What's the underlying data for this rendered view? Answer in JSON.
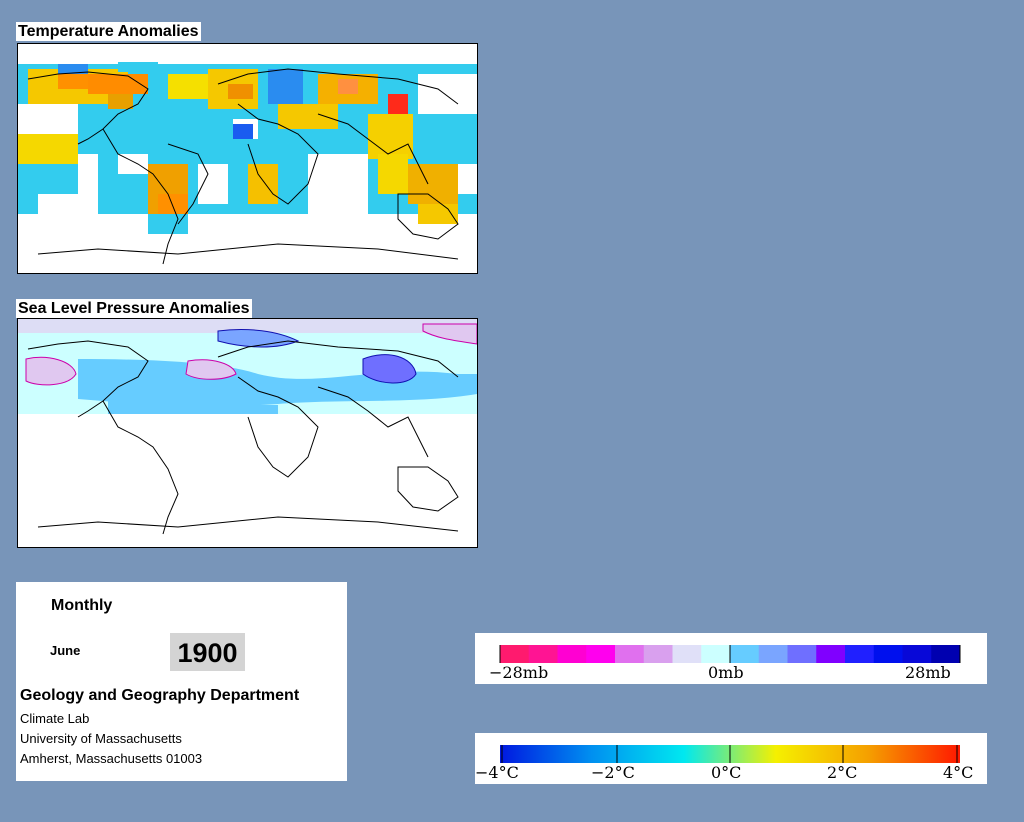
{
  "temperature_panel": {
    "title": "Temperature Anomalies"
  },
  "pressure_panel": {
    "title": "Sea Level Pressure Anomalies"
  },
  "info": {
    "frequency": "Monthly",
    "month": "June",
    "year": "1900",
    "department": "Geology and Geography Department",
    "lines": [
      "Climate Lab",
      "University of Massachusetts",
      "Amherst, Massachusetts 01003"
    ]
  },
  "pressure_legend": {
    "labels": [
      "−28mb",
      "0mb",
      "28mb"
    ],
    "colors": [
      "#ff1a6e",
      "#ff1493",
      "#ff00d2",
      "#ff00ee",
      "#e070ee",
      "#d9a0ee",
      "#e0e0f8",
      "#ccffff",
      "#66ccff",
      "#7aa5ff",
      "#6f6fff",
      "#8000ff",
      "#2020ff",
      "#0010ee",
      "#0808d8",
      "#0000b0"
    ]
  },
  "temperature_legend": {
    "labels": [
      "−4°C",
      "−2°C",
      "0°C",
      "2°C",
      "4°C"
    ],
    "gradient": [
      "#0018e0",
      "#0090f0",
      "#00e8f0",
      "#f5f000",
      "#f5a000",
      "#ff1800"
    ]
  }
}
